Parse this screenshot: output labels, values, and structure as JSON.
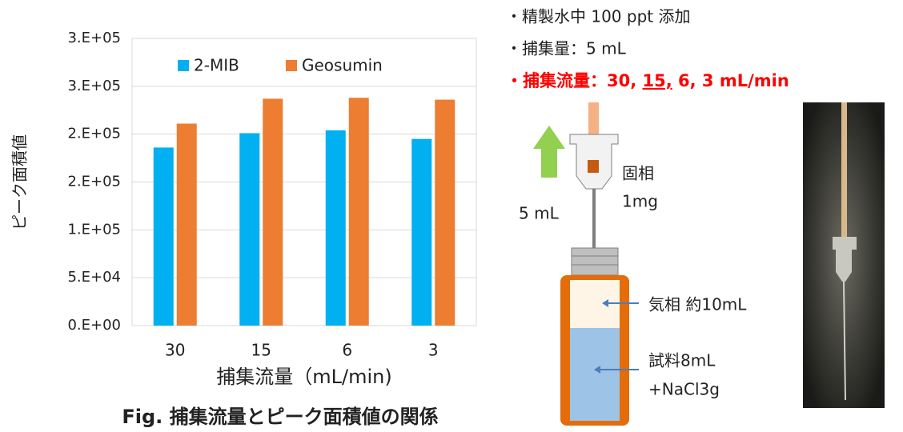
{
  "chart_data": {
    "type": "bar",
    "y_axis_label": "ピーク面積値",
    "x_axis_label": "捕集流量（mL/min)",
    "caption": "Fig. 捕集流量とピーク面積値の関係",
    "categories": [
      "30",
      "15",
      "6",
      "3"
    ],
    "series": [
      {
        "name": "2-MIB",
        "color": "#00b0f0",
        "values": [
          186000,
          201000,
          204000,
          195000
        ]
      },
      {
        "name": "Geosumin",
        "color": "#ed7d31",
        "values": [
          211000,
          237000,
          238000,
          236000
        ]
      }
    ],
    "ylim": [
      0,
      300000
    ],
    "yticks": [
      {
        "value": 0,
        "label": "0.E+00"
      },
      {
        "value": 50000,
        "label": "5.E+04"
      },
      {
        "value": 100000,
        "label": "1.E+05"
      },
      {
        "value": 150000,
        "label": "2.E+05"
      },
      {
        "value": 200000,
        "label": "2.E+05"
      },
      {
        "value": 250000,
        "label": "3.E+05"
      },
      {
        "value": 300000,
        "label": "3.E+05"
      }
    ],
    "grid": true,
    "legend": "top"
  },
  "diagram": {
    "notes": [
      "・精製水中 100 ppt 添加",
      "・捕集量：5 mL"
    ],
    "flow_note": {
      "prefix": "・捕集流量：30, ",
      "underlined": "15,",
      "suffix": " 6, 3 mL/min"
    },
    "labels": {
      "volume": "5 mL",
      "solid_phase": "固相",
      "solid_mass": "1mg",
      "gas_phase": "気相 約10mL",
      "sample": "試料8mL",
      "salt": "+NaCl3g"
    }
  }
}
